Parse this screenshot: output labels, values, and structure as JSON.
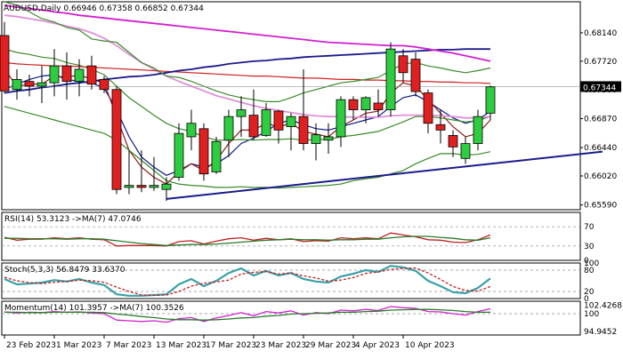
{
  "chart_data": [
    {
      "type": "candlestick",
      "title": "AUDUSD,Daily",
      "ohlc_header": "0.66946 0.67358 0.66852 0.67344",
      "last_price": "0.67344",
      "ylim": [
        0.6552,
        0.686
      ],
      "y_ticks": [
        "0.68140",
        "0.67720",
        "0.67300",
        "0.66870",
        "0.66440",
        "0.66020",
        "0.65590"
      ],
      "x_ticks": [
        "23 Feb 2023",
        "1 Mar 2023",
        "7 Mar 2023",
        "13 Mar 2023",
        "17 Mar 2023",
        "23 Mar 2023",
        "29 Mar 2023",
        "4 Apr 2023",
        "10 Apr 2023"
      ],
      "candles": [
        {
          "o": 0.681,
          "h": 0.683,
          "l": 0.6725,
          "c": 0.6728
        },
        {
          "o": 0.673,
          "h": 0.676,
          "l": 0.6715,
          "c": 0.6745
        },
        {
          "o": 0.6742,
          "h": 0.6752,
          "l": 0.672,
          "c": 0.6735
        },
        {
          "o": 0.6735,
          "h": 0.6765,
          "l": 0.671,
          "c": 0.674
        },
        {
          "o": 0.674,
          "h": 0.679,
          "l": 0.672,
          "c": 0.6765
        },
        {
          "o": 0.6765,
          "h": 0.6785,
          "l": 0.6715,
          "c": 0.6742
        },
        {
          "o": 0.6742,
          "h": 0.6775,
          "l": 0.672,
          "c": 0.676
        },
        {
          "o": 0.6765,
          "h": 0.678,
          "l": 0.673,
          "c": 0.6738
        },
        {
          "o": 0.6745,
          "h": 0.675,
          "l": 0.6725,
          "c": 0.673
        },
        {
          "o": 0.673,
          "h": 0.6735,
          "l": 0.6575,
          "c": 0.6582
        },
        {
          "o": 0.6585,
          "h": 0.664,
          "l": 0.6575,
          "c": 0.6588
        },
        {
          "o": 0.6588,
          "h": 0.664,
          "l": 0.6578,
          "c": 0.6585
        },
        {
          "o": 0.6585,
          "h": 0.663,
          "l": 0.658,
          "c": 0.6588
        },
        {
          "o": 0.6582,
          "h": 0.66,
          "l": 0.6565,
          "c": 0.659
        },
        {
          "o": 0.66,
          "h": 0.668,
          "l": 0.6595,
          "c": 0.6665
        },
        {
          "o": 0.666,
          "h": 0.67,
          "l": 0.664,
          "c": 0.668
        },
        {
          "o": 0.6672,
          "h": 0.668,
          "l": 0.6595,
          "c": 0.6605
        },
        {
          "o": 0.6608,
          "h": 0.666,
          "l": 0.6605,
          "c": 0.6653
        },
        {
          "o": 0.6655,
          "h": 0.67,
          "l": 0.663,
          "c": 0.669
        },
        {
          "o": 0.669,
          "h": 0.672,
          "l": 0.666,
          "c": 0.67
        },
        {
          "o": 0.6692,
          "h": 0.673,
          "l": 0.6655,
          "c": 0.666
        },
        {
          "o": 0.6662,
          "h": 0.671,
          "l": 0.666,
          "c": 0.67
        },
        {
          "o": 0.6698,
          "h": 0.67,
          "l": 0.665,
          "c": 0.667
        },
        {
          "o": 0.6675,
          "h": 0.6695,
          "l": 0.664,
          "c": 0.669
        },
        {
          "o": 0.669,
          "h": 0.676,
          "l": 0.664,
          "c": 0.665
        },
        {
          "o": 0.665,
          "h": 0.668,
          "l": 0.6625,
          "c": 0.6663
        },
        {
          "o": 0.6655,
          "h": 0.668,
          "l": 0.6635,
          "c": 0.666
        },
        {
          "o": 0.666,
          "h": 0.672,
          "l": 0.6645,
          "c": 0.6715
        },
        {
          "o": 0.6715,
          "h": 0.672,
          "l": 0.6685,
          "c": 0.67
        },
        {
          "o": 0.67,
          "h": 0.672,
          "l": 0.668,
          "c": 0.6718
        },
        {
          "o": 0.671,
          "h": 0.673,
          "l": 0.669,
          "c": 0.67
        },
        {
          "o": 0.67,
          "h": 0.68,
          "l": 0.669,
          "c": 0.679
        },
        {
          "o": 0.678,
          "h": 0.679,
          "l": 0.674,
          "c": 0.6755
        },
        {
          "o": 0.6775,
          "h": 0.6785,
          "l": 0.672,
          "c": 0.6727
        },
        {
          "o": 0.6725,
          "h": 0.673,
          "l": 0.6665,
          "c": 0.668
        },
        {
          "o": 0.6678,
          "h": 0.67,
          "l": 0.665,
          "c": 0.667
        },
        {
          "o": 0.6662,
          "h": 0.667,
          "l": 0.663,
          "c": 0.6645
        },
        {
          "o": 0.6628,
          "h": 0.666,
          "l": 0.662,
          "c": 0.665
        },
        {
          "o": 0.665,
          "h": 0.67,
          "l": 0.664,
          "c": 0.669
        },
        {
          "o": 0.6695,
          "h": 0.6736,
          "l": 0.6685,
          "c": 0.6734
        }
      ],
      "series": [
        {
          "color": "#0a1a8c",
          "values": [
            0.673,
            0.6738,
            0.6745,
            0.675,
            0.6752,
            0.6745,
            0.6742,
            0.674,
            0.6732,
            0.67,
            0.666,
            0.663,
            0.6615,
            0.6603,
            0.661,
            0.662,
            0.6615,
            0.662,
            0.6632,
            0.665,
            0.6658,
            0.6668,
            0.668,
            0.6685,
            0.6678,
            0.6672,
            0.667,
            0.6675,
            0.668,
            0.6685,
            0.669,
            0.6705,
            0.6718,
            0.6722,
            0.6712,
            0.67,
            0.6688,
            0.668,
            0.6685,
            0.6698
          ]
        },
        {
          "color": "#8b1a1a",
          "values": [
            0.676,
            0.6735,
            0.6738,
            0.6738,
            0.675,
            0.6748,
            0.6752,
            0.6745,
            0.674,
            0.669,
            0.664,
            0.6615,
            0.66,
            0.659,
            0.6608,
            0.662,
            0.661,
            0.6625,
            0.665,
            0.667,
            0.667,
            0.668,
            0.6675,
            0.668,
            0.6668,
            0.6664,
            0.666,
            0.6675,
            0.6685,
            0.6695,
            0.6698,
            0.6725,
            0.674,
            0.6735,
            0.6715,
            0.6695,
            0.6675,
            0.666,
            0.6665,
            0.6685
          ]
        },
        {
          "color": "#3a8a2a",
          "values": [
            0.679,
            0.6785,
            0.6782,
            0.6778,
            0.6776,
            0.677,
            0.6766,
            0.676,
            0.6752,
            0.6735,
            0.6718,
            0.6705,
            0.6692,
            0.668,
            0.6672,
            0.6668,
            0.666,
            0.6655,
            0.6655,
            0.6656,
            0.6655,
            0.6656,
            0.6656,
            0.6657,
            0.6655,
            0.6656,
            0.6656,
            0.666,
            0.6662,
            0.6665,
            0.6668,
            0.6675,
            0.6682,
            0.669,
            0.669,
            0.6688,
            0.6685,
            0.6682,
            0.6684,
            0.669
          ]
        },
        {
          "color": "#e090d8",
          "values": [
            0.684,
            0.6838,
            0.6835,
            0.6832,
            0.6828,
            0.6824,
            0.682,
            0.6814,
            0.6806,
            0.6795,
            0.6782,
            0.677,
            0.676,
            0.675,
            0.6742,
            0.6735,
            0.6728,
            0.6721,
            0.6716,
            0.6711,
            0.6706,
            0.6702,
            0.6699,
            0.6696,
            0.6693,
            0.6691,
            0.669,
            0.669,
            0.6689,
            0.6689,
            0.6689,
            0.6691,
            0.6692,
            0.6692,
            0.6692,
            0.6691,
            0.669,
            0.6688,
            0.6688,
            0.669
          ]
        },
        {
          "color": "#d02020",
          "values": [
            0.677,
            0.6768,
            0.6767,
            0.6766,
            0.6765,
            0.6765,
            0.6764,
            0.6763,
            0.6762,
            0.6761,
            0.676,
            0.6759,
            0.6758,
            0.6757,
            0.6756,
            0.6755,
            0.6754,
            0.6753,
            0.6752,
            0.6751,
            0.675,
            0.675,
            0.6749,
            0.6748,
            0.6747,
            0.6747,
            0.6746,
            0.6745,
            0.6745,
            0.6744,
            0.6744,
            0.6743,
            0.6743,
            0.6742,
            0.6742,
            0.6741,
            0.6741,
            0.674,
            0.674,
            0.6739
          ]
        },
        {
          "color": "#1a1a8a",
          "values": [
            0.6725,
            0.6728,
            0.673,
            0.6733,
            0.6735,
            0.6738,
            0.674,
            0.6742,
            0.6745,
            0.6747,
            0.6749,
            0.675,
            0.6752,
            0.6755,
            0.6758,
            0.676,
            0.6763,
            0.6765,
            0.6768,
            0.677,
            0.6772,
            0.6773,
            0.6775,
            0.6776,
            0.6778,
            0.6779,
            0.678,
            0.6781,
            0.6782,
            0.6783,
            0.6784,
            0.6785,
            0.6786,
            0.6787,
            0.6788,
            0.6789,
            0.6789,
            0.679,
            0.679,
            0.679
          ]
        },
        {
          "color": "#d020d0",
          "values": [
            0.6855,
            0.6852,
            0.685,
            0.6848,
            0.6845,
            0.6843,
            0.684,
            0.6838,
            0.6836,
            0.6834,
            0.6832,
            0.683,
            0.6828,
            0.6826,
            0.6824,
            0.6822,
            0.682,
            0.6818,
            0.6816,
            0.6814,
            0.6812,
            0.681,
            0.6808,
            0.6806,
            0.6804,
            0.6802,
            0.68,
            0.6799,
            0.6798,
            0.6797,
            0.6796,
            0.6795,
            0.6795,
            0.6793,
            0.679,
            0.6787,
            0.6784,
            0.678,
            0.6776,
            0.6772
          ]
        },
        {
          "color": "#3a8a2a",
          "values": [
            0.686,
            0.6855,
            0.6845,
            0.6835,
            0.683,
            0.6822,
            0.6818,
            0.6805,
            0.6802,
            0.68,
            0.6785,
            0.677,
            0.6762,
            0.675,
            0.6748,
            0.6742,
            0.6735,
            0.6728,
            0.6722,
            0.6718,
            0.6715,
            0.6712,
            0.6712,
            0.6718,
            0.6725,
            0.673,
            0.6735,
            0.674,
            0.6742,
            0.6745,
            0.6748,
            0.6758,
            0.6768,
            0.677,
            0.6765,
            0.6762,
            0.6758,
            0.6755,
            0.6758,
            0.6762
          ]
        },
        {
          "color": "#3a8a2a",
          "values": [
            0.6705,
            0.67,
            0.6695,
            0.669,
            0.6685,
            0.668,
            0.6675,
            0.667,
            0.6665,
            0.6655,
            0.664,
            0.6625,
            0.661,
            0.6595,
            0.659,
            0.6588,
            0.6587,
            0.6585,
            0.6585,
            0.6586,
            0.6585,
            0.6585,
            0.6584,
            0.6585,
            0.6586,
            0.6587,
            0.6588,
            0.659,
            0.6595,
            0.6598,
            0.66,
            0.6605,
            0.661,
            0.662,
            0.6628,
            0.6635,
            0.6635,
            0.6633,
            0.6634,
            0.6638
          ]
        }
      ],
      "trendlines": [
        {
          "color": "#1a1a8a",
          "from": {
            "bar": 13,
            "y": 0.6568
          },
          "to": {
            "bar": 48,
            "y": 0.6638
          }
        }
      ]
    },
    {
      "type": "line",
      "title": "RSI(14) 53.3123 ->MA(7) 47.0746",
      "ylim": [
        0,
        100
      ],
      "y_ticks": [
        "70",
        "30",
        "0"
      ],
      "levels": [
        70,
        30
      ],
      "series": [
        {
          "color": "#c02020",
          "values": [
            48,
            42,
            44,
            44,
            47,
            45,
            47,
            44,
            43,
            30,
            31,
            31,
            31,
            30,
            39,
            41,
            34,
            40,
            45,
            47,
            42,
            46,
            43,
            45,
            39,
            41,
            40,
            47,
            45,
            47,
            45,
            57,
            53,
            49,
            43,
            42,
            38,
            37,
            43,
            53
          ]
        },
        {
          "color": "#2a7a2a",
          "values": [
            46,
            46,
            45,
            45,
            45,
            44,
            45,
            45,
            44,
            41,
            38,
            35,
            33,
            31,
            32,
            33,
            33,
            34,
            36,
            38,
            40,
            42,
            43,
            44,
            43,
            43,
            42,
            43,
            43,
            44,
            44,
            47,
            49,
            50,
            50,
            48,
            46,
            43,
            42,
            47
          ]
        }
      ]
    },
    {
      "type": "line",
      "title": "Stoch(5,3,3) 56.8479 33.6370",
      "ylim": [
        0,
        100
      ],
      "y_ticks": [
        "100",
        "80",
        "20",
        "0"
      ],
      "levels": [
        80,
        20
      ],
      "series": [
        {
          "color": "#3aa0a8",
          "values": [
            55,
            40,
            42,
            45,
            52,
            48,
            55,
            45,
            38,
            12,
            8,
            8,
            10,
            12,
            40,
            55,
            35,
            50,
            72,
            85,
            65,
            78,
            65,
            72,
            55,
            48,
            45,
            62,
            70,
            80,
            75,
            92,
            88,
            78,
            50,
            35,
            18,
            15,
            30,
            57
          ]
        },
        {
          "color": "#c02020",
          "values": [
            60,
            50,
            45,
            42,
            46,
            48,
            52,
            50,
            46,
            32,
            20,
            10,
            9,
            10,
            20,
            35,
            43,
            47,
            52,
            69,
            74,
            76,
            69,
            72,
            64,
            58,
            49,
            52,
            59,
            71,
            75,
            82,
            85,
            86,
            72,
            54,
            34,
            23,
            21,
            34
          ]
        }
      ]
    },
    {
      "type": "line",
      "title": "Momentum(14) 101.3957 ->MA(7) 100.3526",
      "y_ticks": [
        "102.4268",
        "100",
        "94.9452"
      ],
      "ylim": [
        94.0,
        103.5
      ],
      "levels": [
        100
      ],
      "series": [
        {
          "color": "#d020d0",
          "values": [
            100.5,
            100.2,
            100.4,
            100.3,
            100.6,
            100.4,
            100.5,
            100.2,
            100.0,
            98.2,
            98.0,
            97.8,
            98.0,
            97.6,
            98.6,
            98.9,
            97.8,
            98.8,
            99.5,
            100.3,
            99.4,
            100.6,
            100.2,
            100.8,
            99.6,
            100.3,
            100.0,
            101.0,
            100.8,
            101.2,
            100.9,
            102.0,
            101.7,
            101.5,
            100.6,
            100.5,
            100.0,
            99.6,
            100.6,
            101.4
          ]
        },
        {
          "color": "#2a7a2a",
          "values": [
            100.4,
            100.4,
            100.3,
            100.3,
            100.4,
            100.4,
            100.4,
            100.4,
            100.3,
            99.9,
            99.6,
            99.2,
            98.9,
            98.5,
            98.3,
            98.3,
            98.2,
            98.3,
            98.5,
            98.8,
            98.9,
            99.3,
            99.5,
            99.9,
            100.0,
            100.1,
            100.2,
            100.4,
            100.4,
            100.6,
            100.7,
            101.0,
            101.1,
            101.2,
            101.2,
            101.1,
            100.9,
            100.6,
            100.4,
            100.4
          ]
        }
      ]
    }
  ]
}
